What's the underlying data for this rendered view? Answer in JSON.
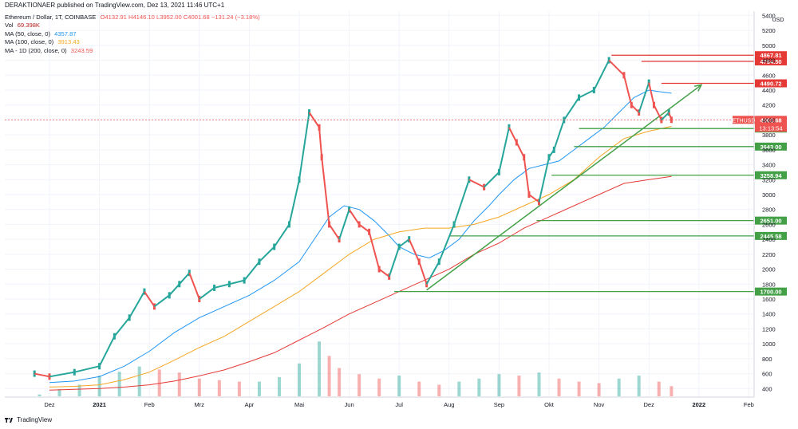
{
  "header": {
    "title": "DERAKTIONAER published on TradingView.com, Dez 13, 2021 11:46 UTC+1"
  },
  "legend": {
    "symbol": "Ethereum / Dollar, 1T, COINBASE",
    "ohlc": "O4132.91  H4146.10  L3952.00  C4001.68  −131.24 (−3.18%)",
    "vol_label": "Vol",
    "vol_value": "69.398K",
    "ma50_label": "MA (50, close, 0)",
    "ma50_value": "4357.87",
    "ma100_label": "MA (100, close, 0)",
    "ma100_value": "3913.43",
    "ma200_label": "MA - 1D (200, close, 0)",
    "ma200_value": "3243.59"
  },
  "footer": {
    "brand": "TradingView"
  },
  "colors": {
    "up": "#26a69a",
    "down": "#ef5350",
    "ma50": "#2196f3",
    "ma100": "#f5a623",
    "ma200": "#e53935",
    "support": "#43a047",
    "resistance": "#e53935",
    "grid": "#f0f3fa"
  },
  "chart_data": {
    "type": "line",
    "title": "Ethereum / Dollar, 1T, COINBASE",
    "ylabel": "USD",
    "ylim": [
      300,
      5500
    ],
    "y_ticks": [
      400,
      600,
      800,
      1000,
      1200,
      1400,
      1600,
      1800,
      2000,
      2200,
      2400,
      2600,
      2800,
      3000,
      3200,
      3400,
      3600,
      3800,
      4000,
      4200,
      4400,
      4600,
      4800,
      5000,
      5200,
      5400
    ],
    "x_labels": [
      "Dez",
      "2021",
      "Feb",
      "Mrz",
      "Apr",
      "Mai",
      "Jun",
      "Jul",
      "Aug",
      "Sep",
      "Okt",
      "Nov",
      "Dez",
      "2022",
      "Feb"
    ],
    "x_label_months": [
      11.0,
      12.0,
      13.0,
      14.0,
      15.0,
      16.0,
      17.0,
      18.0,
      19.0,
      20.0,
      21.0,
      22.0,
      23.0,
      24.0,
      25.0
    ],
    "series": [
      {
        "name": "ETHUSD",
        "x": [
          10.7,
          11.0,
          11.5,
          12.0,
          12.3,
          12.6,
          12.9,
          13.1,
          13.4,
          13.6,
          13.8,
          14.0,
          14.3,
          14.6,
          14.9,
          15.2,
          15.5,
          15.8,
          16.0,
          16.2,
          16.4,
          16.45,
          16.6,
          16.8,
          17.0,
          17.2,
          17.4,
          17.6,
          17.8,
          18.0,
          18.2,
          18.4,
          18.55,
          18.8,
          19.1,
          19.4,
          19.7,
          20.0,
          20.2,
          20.35,
          20.5,
          20.6,
          20.8,
          21.0,
          21.1,
          21.3,
          21.6,
          21.9,
          22.2,
          22.5,
          22.65,
          22.8,
          23.0,
          23.1,
          23.25,
          23.4,
          23.45
        ],
        "values": [
          600,
          560,
          620,
          700,
          1100,
          1350,
          1700,
          1500,
          1650,
          1800,
          1950,
          1600,
          1750,
          1800,
          1850,
          2100,
          2300,
          2600,
          3200,
          4100,
          3900,
          3500,
          2600,
          2400,
          2800,
          2600,
          2500,
          2000,
          1900,
          2300,
          2400,
          2100,
          1800,
          2100,
          2600,
          3200,
          3100,
          3300,
          3900,
          3700,
          3500,
          3000,
          2900,
          3500,
          3600,
          4000,
          4300,
          4400,
          4800,
          4600,
          4200,
          4100,
          4500,
          4200,
          4000,
          4100,
          4001.68
        ]
      },
      {
        "name": "MA (50, close, 0)",
        "x": [
          11.0,
          11.5,
          12.0,
          12.5,
          13.0,
          13.5,
          14.0,
          14.5,
          15.0,
          15.5,
          16.0,
          16.3,
          16.6,
          16.9,
          17.2,
          17.5,
          17.8,
          18.0,
          18.3,
          18.6,
          18.9,
          19.2,
          19.5,
          19.8,
          20.0,
          20.3,
          20.6,
          20.9,
          21.2,
          21.5,
          21.8,
          22.1,
          22.4,
          22.7,
          23.0,
          23.2,
          23.45
        ],
        "values": [
          480,
          500,
          560,
          700,
          900,
          1150,
          1350,
          1500,
          1650,
          1850,
          2100,
          2400,
          2700,
          2850,
          2800,
          2650,
          2450,
          2300,
          2200,
          2150,
          2250,
          2400,
          2650,
          2850,
          3000,
          3200,
          3350,
          3400,
          3450,
          3600,
          3750,
          3900,
          4100,
          4300,
          4400,
          4380,
          4357.87
        ]
      },
      {
        "name": "MA (100, close, 0)",
        "x": [
          11.0,
          11.5,
          12.0,
          12.5,
          13.0,
          13.5,
          14.0,
          14.5,
          15.0,
          15.5,
          16.0,
          16.5,
          17.0,
          17.5,
          18.0,
          18.5,
          19.0,
          19.5,
          20.0,
          20.5,
          21.0,
          21.5,
          22.0,
          22.5,
          23.0,
          23.45
        ],
        "values": [
          420,
          430,
          450,
          520,
          620,
          780,
          950,
          1100,
          1300,
          1500,
          1700,
          1950,
          2200,
          2400,
          2500,
          2550,
          2550,
          2600,
          2700,
          2850,
          3000,
          3200,
          3500,
          3750,
          3850,
          3913.43
        ]
      },
      {
        "name": "MA - 1D (200, close, 0)",
        "x": [
          11.0,
          11.5,
          12.0,
          12.5,
          13.0,
          13.5,
          14.0,
          14.5,
          15.0,
          15.5,
          16.0,
          16.5,
          17.0,
          17.5,
          18.0,
          18.5,
          19.0,
          19.5,
          20.0,
          20.5,
          21.0,
          21.5,
          22.0,
          22.5,
          23.0,
          23.45
        ],
        "values": [
          380,
          390,
          400,
          420,
          450,
          500,
          570,
          650,
          760,
          880,
          1050,
          1220,
          1400,
          1550,
          1700,
          1850,
          2000,
          2200,
          2350,
          2550,
          2700,
          2850,
          3000,
          3150,
          3200,
          3243.59
        ]
      }
    ],
    "volume": {
      "x": [
        10.8,
        11.2,
        11.6,
        12.0,
        12.4,
        12.8,
        13.2,
        13.6,
        14.0,
        14.4,
        14.8,
        15.2,
        15.6,
        16.0,
        16.4,
        16.6,
        16.8,
        17.2,
        17.6,
        18.0,
        18.4,
        18.8,
        19.2,
        19.6,
        20.0,
        20.4,
        20.8,
        21.2,
        21.6,
        22.0,
        22.4,
        22.8,
        23.2,
        23.45
      ],
      "values": [
        350,
        420,
        480,
        600,
        650,
        720,
        680,
        640,
        560,
        540,
        520,
        520,
        580,
        760,
        1050,
        860,
        700,
        620,
        560,
        600,
        520,
        480,
        520,
        560,
        620,
        600,
        640,
        560,
        520,
        500,
        560,
        600,
        520,
        460
      ]
    },
    "levels": [
      {
        "label": "4867.81",
        "kind": "resistance",
        "x_start": 22.25
      },
      {
        "label": "4784.50",
        "kind": "resistance",
        "x_start": 22.85
      },
      {
        "label": "4490.72",
        "kind": "resistance",
        "x_start": 23.25
      },
      {
        "label": "3885.25",
        "kind": "support",
        "x_start": 21.6
      },
      {
        "label": "3643.00",
        "kind": "support",
        "x_start": 21.5
      },
      {
        "label": "3258.94",
        "kind": "support",
        "x_start": 21.05
      },
      {
        "label": "2651.00",
        "kind": "support",
        "x_start": 20.75
      },
      {
        "label": "2445.58",
        "kind": "support",
        "x_start": 19.0
      },
      {
        "label": "1700.00",
        "kind": "support",
        "x_start": 17.9
      }
    ],
    "trendline": {
      "x": [
        18.55,
        24.05
      ],
      "y": [
        1720,
        4470
      ]
    },
    "current_price": {
      "symbol": "ETHUSD",
      "price": "4001.68",
      "countdown": "13:13:54"
    }
  }
}
